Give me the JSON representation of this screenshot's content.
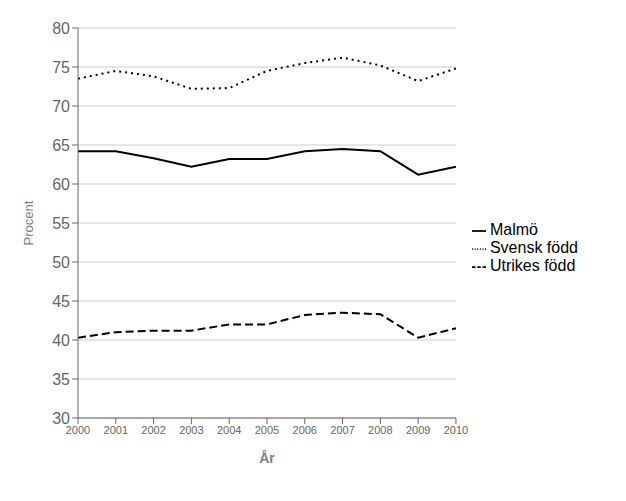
{
  "chart_data": {
    "type": "line",
    "x": [
      2000,
      2001,
      2002,
      2003,
      2004,
      2005,
      2006,
      2007,
      2008,
      2009,
      2010
    ],
    "xlabel": "År",
    "ylabel": "Procent",
    "xlim": [
      2000,
      2010
    ],
    "xticks": [
      2000,
      2001,
      2002,
      2003,
      2004,
      2005,
      2006,
      2007,
      2008,
      2009,
      2010
    ],
    "ylim": [
      30,
      80
    ],
    "yticks": [
      30,
      35,
      40,
      45,
      50,
      55,
      60,
      65,
      70,
      75,
      80
    ],
    "grid": true,
    "legend": "right",
    "series": [
      {
        "name": "Svensk född",
        "color": "#000000",
        "line_style": "dotted",
        "values": [
          73.5,
          74.5,
          73.8,
          72.2,
          72.3,
          74.5,
          75.5,
          76.2,
          75.2,
          73.2,
          74.8
        ]
      },
      {
        "name": "Malmö",
        "color": "#000000",
        "line_style": "solid",
        "values": [
          64.2,
          64.2,
          63.3,
          62.2,
          63.2,
          63.2,
          64.2,
          64.5,
          64.2,
          61.2,
          62.2
        ]
      },
      {
        "name": "Utrikes född",
        "color": "#000000",
        "line_style": "dashed",
        "values": [
          40.3,
          41.0,
          41.2,
          41.2,
          42.0,
          42.0,
          43.2,
          43.5,
          43.3,
          40.3,
          41.5
        ]
      }
    ]
  }
}
